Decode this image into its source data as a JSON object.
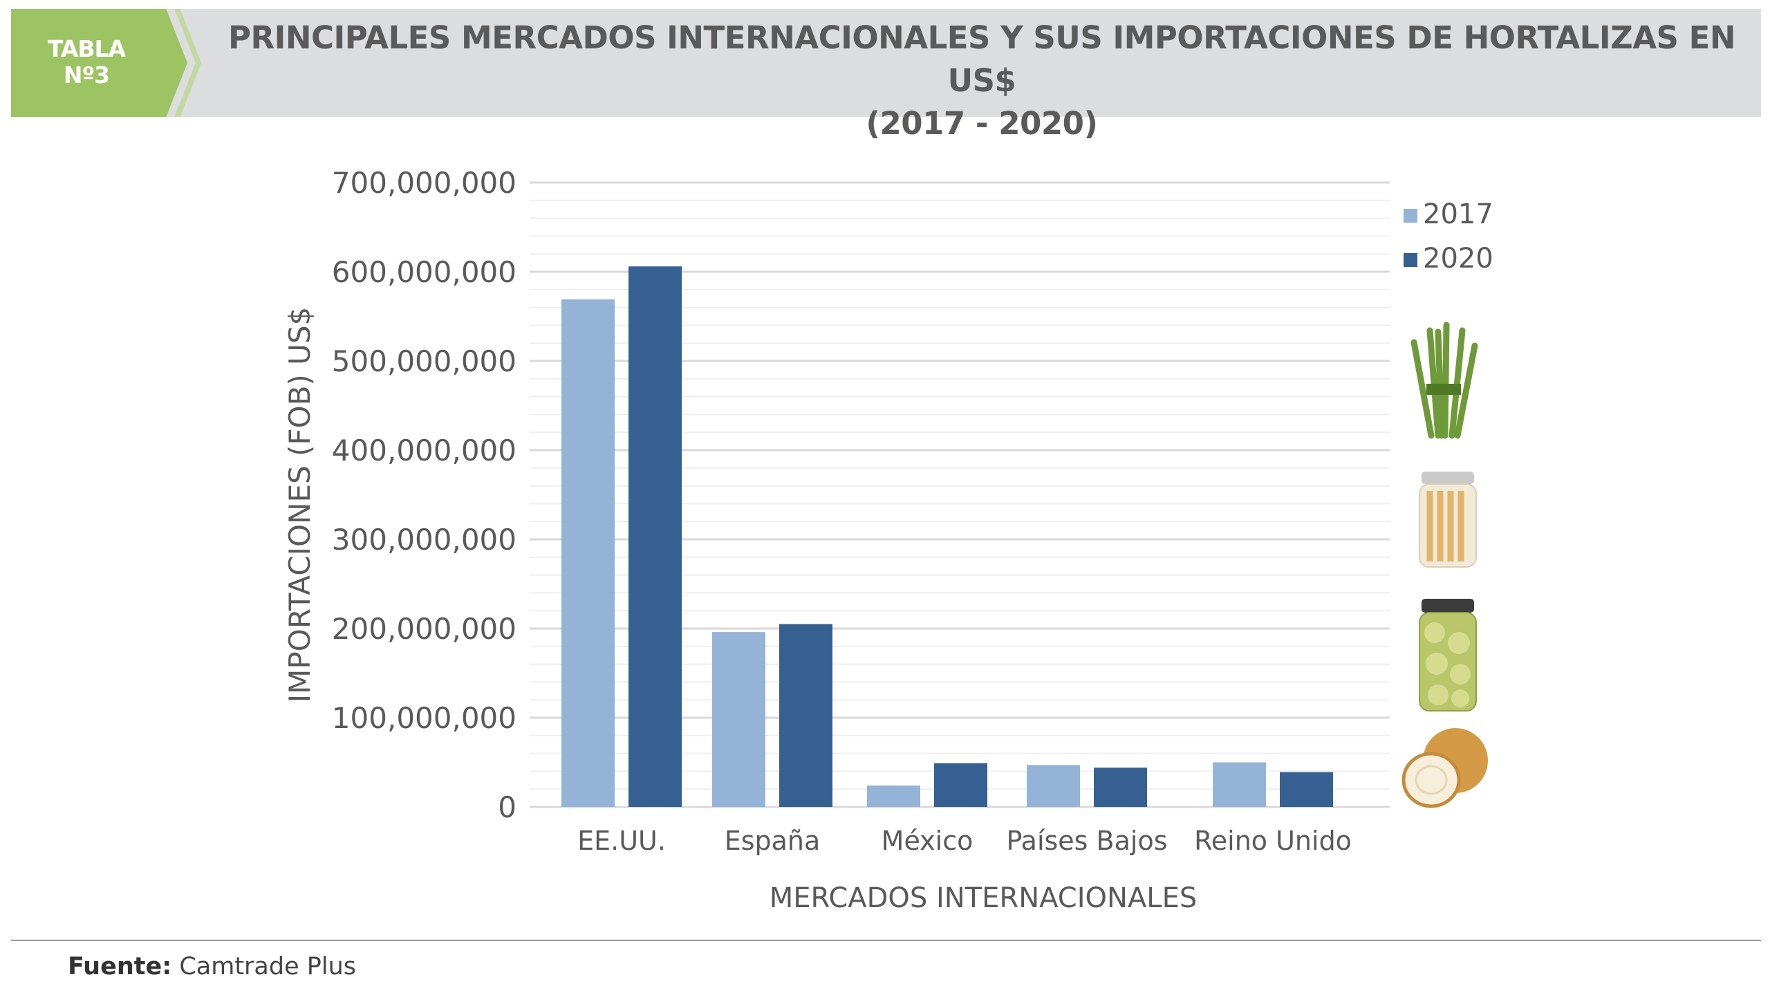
{
  "header": {
    "tab_label_line1": "TABLA",
    "tab_label_line2": "Nº3",
    "title_line1": "PRINCIPALES MERCADOS INTERNACIONALES Y SUS IMPORTACIONES DE HORTALIZAS EN US$",
    "title_line2": "(2017 - 2020)"
  },
  "chart_data": {
    "type": "bar",
    "title": "PRINCIPALES MERCADOS INTERNACIONALES Y SUS IMPORTACIONES DE HORTALIZAS EN US$ (2017 - 2020)",
    "xlabel": "MERCADOS INTERNACIONALES",
    "ylabel": "IMPORTACIONES (FOB) US$",
    "ylim": [
      0,
      700000000
    ],
    "yticks": [
      "0",
      "100,000,000",
      "200,000,000",
      "300,000,000",
      "400,000,000",
      "500,000,000",
      "600,000,000",
      "700,000,000"
    ],
    "grid": true,
    "legend_position": "right",
    "categories": [
      "EE.UU.",
      "España",
      "México",
      "Países Bajos",
      "Reino Unido"
    ],
    "series": [
      {
        "name": "2017",
        "color": "#95b3d7",
        "values": [
          569000000,
          196000000,
          24000000,
          47000000,
          50000000
        ]
      },
      {
        "name": "2020",
        "color": "#366092",
        "values": [
          606000000,
          205000000,
          49000000,
          44000000,
          39000000
        ]
      }
    ]
  },
  "illustrations": [
    "asparagus-icon",
    "jarred-asparagus-icon",
    "jarred-artichoke-icon",
    "onion-icon"
  ],
  "footer": {
    "source_label": "Fuente:",
    "source_value": "Camtrade Plus"
  }
}
